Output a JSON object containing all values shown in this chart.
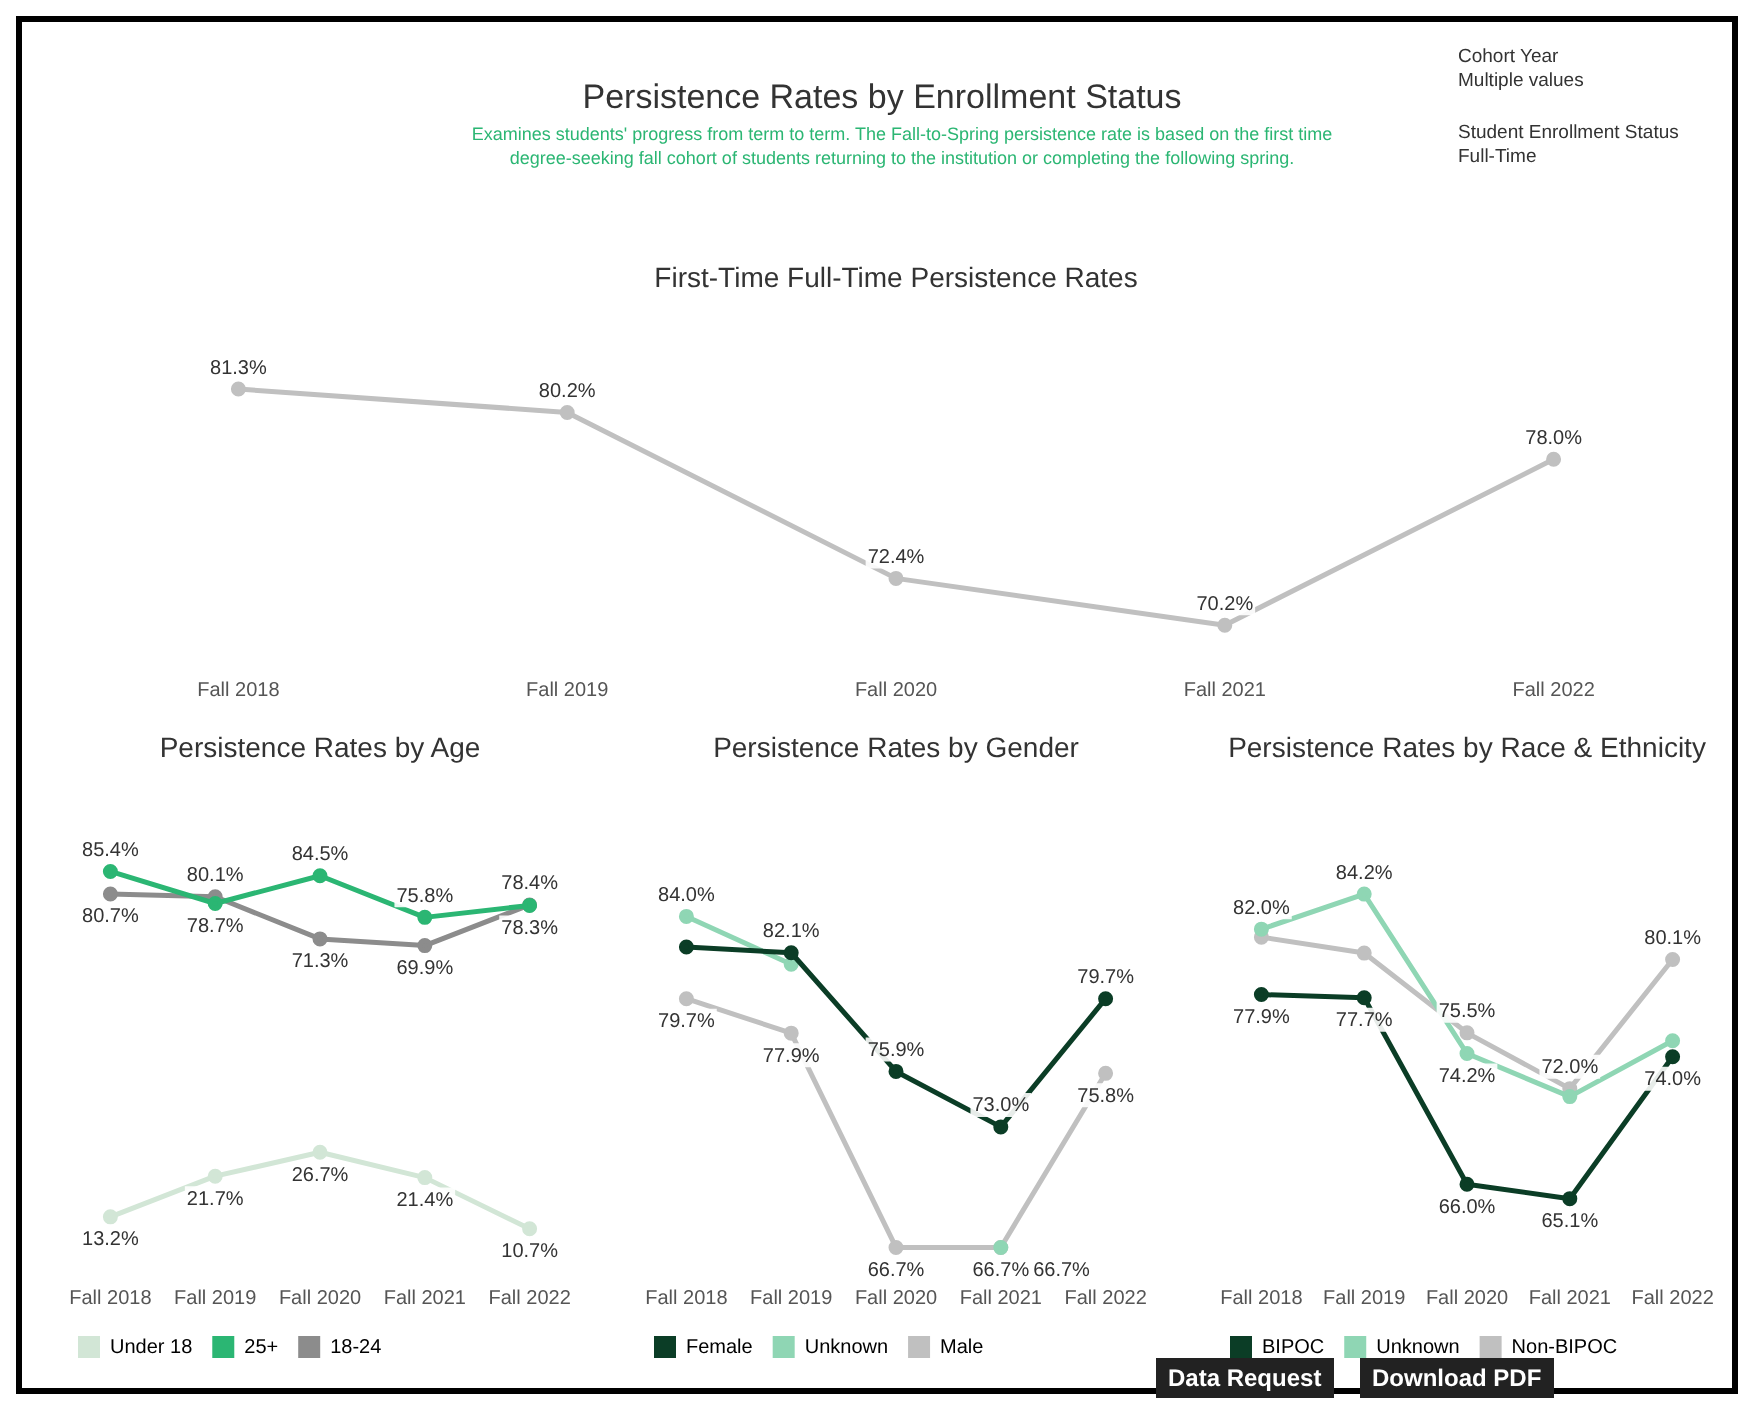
{
  "chart_data": [
    {
      "type": "other",
      "title": "Persistence Rates by Enrollment Status",
      "subtitle": "Examines students' progress from term to term. The Fall-to-Spring persistence rate is based on the first time degree-seeking fall cohort of students returning to the institution or completing the following spring.",
      "annotations": [
        "Cohort Year",
        "Multiple values",
        "Student Enrollment Status",
        "Full-Time",
        "Data Request",
        "Download PDF"
      ]
    },
    {
      "type": "line",
      "title": "First-Time Full-Time Persistence Rates",
      "categories": [
        "Fall 2018",
        "Fall 2019",
        "Fall 2020",
        "Fall 2021",
        "Fall 2022"
      ],
      "tick_labels": "x",
      "legend": false,
      "marker": "circle",
      "series": [
        {
          "color": "#c0c0c0",
          "values": [
            81.3,
            80.2,
            72.4,
            70.2,
            78.0
          ],
          "value_labels": [
            "81.3%",
            "80.2%",
            "72.4%",
            "70.2%",
            "78.0%"
          ]
        }
      ]
    },
    {
      "type": "line",
      "title": "Persistence Rates by Age",
      "categories": [
        "Fall 2018",
        "Fall 2019",
        "Fall 2020",
        "Fall 2021",
        "Fall 2022"
      ],
      "tick_labels": "x",
      "legend": "bottom",
      "marker": "circle",
      "series": [
        {
          "name": "Under 18",
          "color": "#d2e6d6",
          "values": [
            13.2,
            21.7,
            26.7,
            21.4,
            10.7
          ],
          "value_labels": [
            "13.2%",
            "21.7%",
            "26.7%",
            "21.4%",
            "10.7%"
          ]
        },
        {
          "name": "25+",
          "color": "#2bb673",
          "values": [
            85.4,
            78.7,
            84.5,
            75.8,
            78.3
          ],
          "value_labels": [
            "85.4%",
            "78.7%",
            "84.5%",
            "75.8%",
            "78.3%"
          ]
        },
        {
          "name": "18-24",
          "color": "#8c8c8c",
          "values": [
            80.7,
            80.1,
            71.3,
            69.9,
            78.4
          ],
          "value_labels": [
            "80.7%",
            "80.1%",
            "71.3%",
            "69.9%",
            "78.4%"
          ]
        }
      ]
    },
    {
      "type": "line",
      "title": "Persistence Rates by Gender",
      "categories": [
        "Fall 2018",
        "Fall 2019",
        "Fall 2020",
        "Fall 2021",
        "Fall 2022"
      ],
      "tick_labels": "x",
      "legend": "bottom",
      "marker": "circle",
      "series": [
        {
          "name": "Female",
          "color": "#0b3d26",
          "values": [
            82.4,
            82.1,
            75.9,
            73.0,
            79.7
          ],
          "value_labels": [
            null,
            "82.1%",
            "75.9%",
            "73.0%",
            "79.7%"
          ]
        },
        {
          "name": "Unknown",
          "color": "#8fd6b4",
          "values": [
            84.0,
            81.5,
            null,
            66.7,
            null
          ],
          "value_labels": [
            "84.0%",
            null,
            null,
            "66.7%",
            null
          ]
        },
        {
          "name": "Male",
          "color": "#c0c0c0",
          "values": [
            79.7,
            77.9,
            66.7,
            66.7,
            75.8
          ],
          "value_labels": [
            "79.7%",
            "77.9%",
            "66.7%",
            "66.7%",
            "75.8%"
          ]
        }
      ]
    },
    {
      "type": "line",
      "title": "Persistence Rates by Race & Ethnicity",
      "categories": [
        "Fall 2018",
        "Fall 2019",
        "Fall 2020",
        "Fall 2021",
        "Fall 2022"
      ],
      "tick_labels": "x",
      "legend": "bottom",
      "marker": "circle",
      "series": [
        {
          "name": "BIPOC",
          "color": "#0b3d26",
          "values": [
            77.9,
            77.7,
            66.0,
            65.1,
            74.0
          ],
          "value_labels": [
            "77.9%",
            "77.7%",
            "66.0%",
            "65.1%",
            "74.0%"
          ]
        },
        {
          "name": "Unknown",
          "color": "#8fd6b4",
          "values": [
            82.0,
            84.2,
            74.2,
            71.5,
            75.0
          ],
          "value_labels": [
            "82.0%",
            "84.2%",
            "74.2%",
            null,
            null
          ]
        },
        {
          "name": "Non-BIPOC",
          "color": "#c0c0c0",
          "values": [
            81.5,
            80.5,
            75.5,
            72.0,
            80.1
          ],
          "value_labels": [
            null,
            null,
            "75.5%",
            "72.0%",
            "80.1%"
          ]
        }
      ]
    }
  ]
}
